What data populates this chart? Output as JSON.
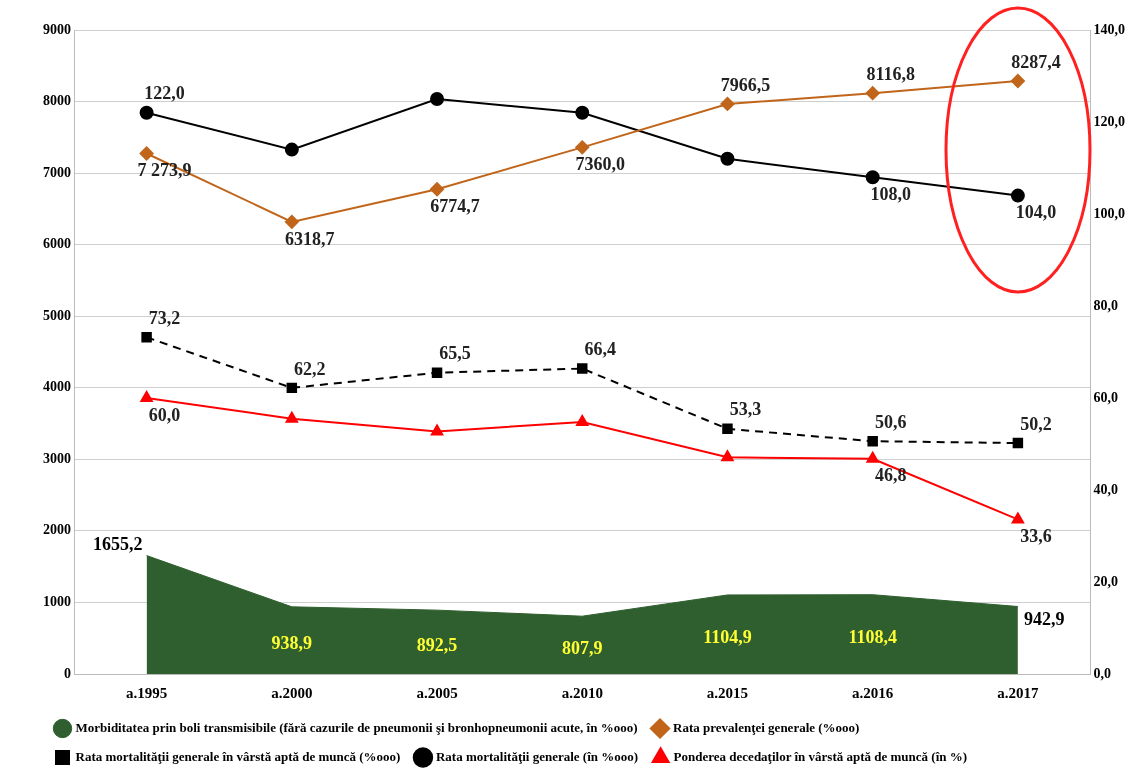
{
  "chart_data": {
    "type": "line",
    "categories": [
      "a.1995",
      "a.2000",
      "a.2005",
      "a.2010",
      "a.2015",
      "a.2016",
      "a.2017"
    ],
    "series": [
      {
        "name": "Morbiditatea prin boli transmisibile (fără cazurile de pneumonii şi bronhopneumonii acute, în %ooo)",
        "type": "area",
        "color": "#2f5f2f",
        "values": [
          1655.2,
          938.9,
          892.5,
          807.9,
          1104.9,
          1108.4,
          942.9
        ],
        "value_labels": [
          "1655,2",
          "938,9",
          "892,5",
          "807,9",
          "1104,9",
          "1108,4",
          "942,9"
        ]
      },
      {
        "name": "Rata prevalenţei generale (%ooo)",
        "type": "line",
        "color": "#c0651a",
        "marker": "diamond",
        "values": [
          7273.9,
          6318.7,
          6774.7,
          7360.0,
          7966.5,
          8116.8,
          8287.4
        ],
        "value_labels": [
          "7 273,9",
          "6318,7",
          "6774,7",
          "7360,0",
          "7966,5",
          "8116,8",
          "8287,4"
        ]
      },
      {
        "name": "Rata mortalităţii generale în vârstă aptă de muncă (%ooo)",
        "type": "line",
        "axis": "y2",
        "color": "#000000",
        "marker": "square",
        "line_style": "dashed",
        "values": [
          73.2,
          62.2,
          65.5,
          66.4,
          53.3,
          50.6,
          50.2
        ],
        "value_labels": [
          "73,2",
          "62,2",
          "65,5",
          "66,4",
          "53,3",
          "50,6",
          "50,2"
        ]
      },
      {
        "name": "Rata mortalităţii generale (în %ooo)",
        "type": "line",
        "axis": "y2",
        "color": "#000000",
        "marker": "circle",
        "values": [
          122.0,
          114,
          125,
          122,
          112,
          108.0,
          104.0
        ],
        "value_labels": [
          "122,0",
          null,
          null,
          null,
          null,
          "108,0",
          "104,0"
        ]
      },
      {
        "name": "Ponderea decedaţilor în vârstă aptă de muncă (în %)",
        "type": "line",
        "axis": "y2",
        "color": "#ff0000",
        "marker": "triangle",
        "values": [
          60.0,
          55.5,
          52.7,
          54.8,
          47.1,
          46.8,
          33.6
        ],
        "value_labels": [
          "60,0",
          null,
          null,
          null,
          null,
          "46,8",
          "33,6"
        ]
      }
    ],
    "ylim": [
      0,
      9000
    ],
    "yticks": [
      0,
      1000,
      2000,
      3000,
      4000,
      5000,
      6000,
      7000,
      8000,
      9000
    ],
    "y2lim": [
      0,
      140
    ],
    "y2ticks": [
      {
        "value": 0,
        "label": "0,0"
      },
      {
        "value": 20,
        "label": "20,0"
      },
      {
        "value": 40,
        "label": "40,0"
      },
      {
        "value": 60,
        "label": "60,0"
      },
      {
        "value": 80,
        "label": "80,0"
      },
      {
        "value": 100,
        "label": "100,0"
      },
      {
        "value": 120,
        "label": "120,0"
      },
      {
        "value": 140,
        "label": "140,0"
      }
    ],
    "grid": "y",
    "legend": "bottom"
  }
}
